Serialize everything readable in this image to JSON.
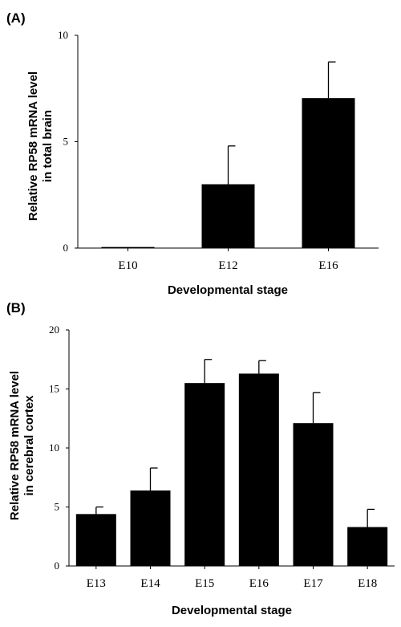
{
  "chart_data": [
    {
      "panel_label": "(A)",
      "type": "bar",
      "categories": [
        "E10",
        "E12",
        "E16"
      ],
      "values": [
        0.05,
        3.0,
        7.05
      ],
      "errors": [
        0.0,
        1.8,
        1.7
      ],
      "xlabel": "Developmental stage",
      "ylabel_lines": [
        "Relative RP58 mRNA level",
        "in total brain"
      ],
      "ylim": [
        0,
        10
      ],
      "yticks": [
        "0",
        "5",
        "10"
      ],
      "bar_color": "#000000",
      "grid": false
    },
    {
      "panel_label": "(B)",
      "type": "bar",
      "categories": [
        "E13",
        "E14",
        "E15",
        "E16",
        "E17",
        "E18"
      ],
      "values": [
        4.4,
        6.4,
        15.5,
        16.3,
        12.1,
        3.3
      ],
      "errors": [
        0.6,
        1.9,
        2.0,
        1.1,
        2.6,
        1.5
      ],
      "xlabel": "Developmental stage",
      "ylabel_lines": [
        "Relative RP58 mRNA level",
        "in cerebral cortex"
      ],
      "ylim": [
        0,
        20
      ],
      "yticks": [
        "0",
        "5",
        "10",
        "15",
        "20"
      ],
      "bar_color": "#000000",
      "grid": false
    }
  ]
}
